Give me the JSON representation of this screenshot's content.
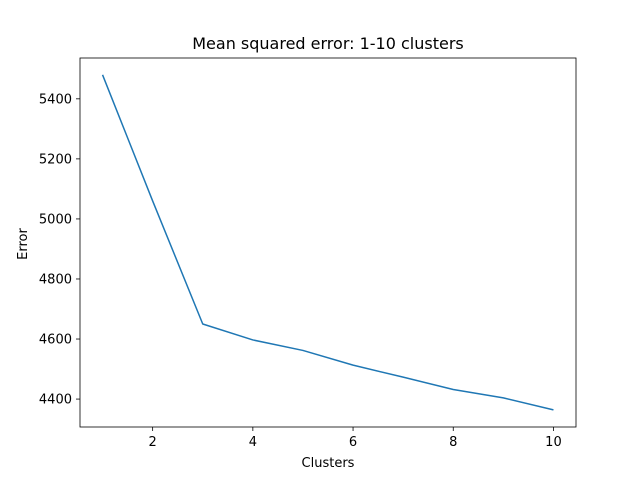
{
  "chart_data": {
    "type": "line",
    "title": "Mean squared error: 1-10 clusters",
    "xlabel": "Clusters",
    "ylabel": "Error",
    "x": [
      1,
      2,
      3,
      4,
      5,
      6,
      7,
      8,
      9,
      10
    ],
    "series": [
      {
        "values": [
          5480,
          5060,
          4650,
          4597,
          4562,
          4513,
          4473,
          4432,
          4404,
          4364
        ],
        "color": "#1f77b4"
      }
    ],
    "xlim": [
      0.55,
      10.45
    ],
    "ylim": [
      4307,
      5536
    ],
    "xticks": [
      2,
      4,
      6,
      8,
      10
    ],
    "yticks": [
      4400,
      4600,
      4800,
      5000,
      5200,
      5400
    ],
    "grid": false,
    "legend": false
  }
}
